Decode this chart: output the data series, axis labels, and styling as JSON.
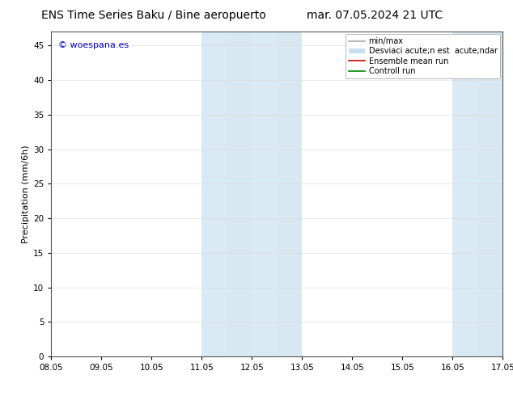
{
  "title_left": "ENS Time Series Baku / Bine aeropuerto",
  "title_right": "mar. 07.05.2024 21 UTC",
  "ylabel": "Precipitation (mm/6h)",
  "xlabel": "",
  "xlim": [
    0,
    9
  ],
  "ylim": [
    0,
    47
  ],
  "yticks": [
    0,
    5,
    10,
    15,
    20,
    25,
    30,
    35,
    40,
    45
  ],
  "xtick_positions": [
    0,
    1,
    2,
    3,
    4,
    5,
    6,
    7,
    8,
    9
  ],
  "xtick_labels": [
    "08.05",
    "09.05",
    "10.05",
    "11.05",
    "12.05",
    "13.05",
    "14.05",
    "15.05",
    "16.05",
    "17.05"
  ],
  "shaded_regions": [
    {
      "xmin": 3.0,
      "xmax": 3.5,
      "color": "#daeaf5"
    },
    {
      "xmin": 3.5,
      "xmax": 4.0,
      "color": "#d0e5f2"
    },
    {
      "xmin": 3.5,
      "xmax": 5.0,
      "color": "#daeaf5"
    },
    {
      "xmin": 8.0,
      "xmax": 8.5,
      "color": "#daeaf5"
    },
    {
      "xmin": 8.5,
      "xmax": 9.0,
      "color": "#d0e5f2"
    }
  ],
  "shade_color_1": "#daeaf5",
  "shade_color_2": "#d8e8f3",
  "watermark_text": "© woespana.es",
  "watermark_color": "#0000cc",
  "background_color": "#ffffff",
  "legend_items": [
    {
      "label": "min/max",
      "color": "#aaaaaa",
      "lw": 1.2
    },
    {
      "label": "Desviaci acute;n est  acute;ndar",
      "color": "#c8dff0",
      "lw": 6
    },
    {
      "label": "Ensemble mean run",
      "color": "#cc0000",
      "lw": 1.2
    },
    {
      "label": "Controll run",
      "color": "#008800",
      "lw": 1.2
    }
  ],
  "title_fontsize": 10,
  "axis_fontsize": 8,
  "tick_fontsize": 7.5,
  "legend_fontsize": 7,
  "figsize": [
    6.34,
    4.9
  ],
  "dpi": 100
}
